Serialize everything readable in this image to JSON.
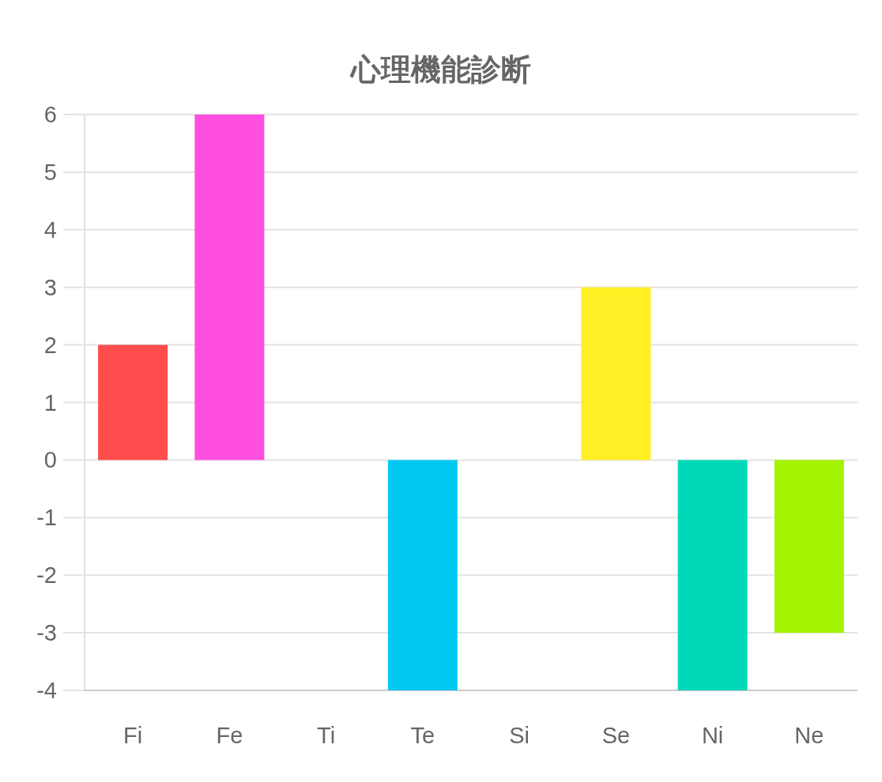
{
  "chart_data": {
    "type": "bar",
    "title": "心理機能診断",
    "categories": [
      "Fi",
      "Fe",
      "Ti",
      "Te",
      "Si",
      "Se",
      "Ni",
      "Ne"
    ],
    "values": [
      2,
      6,
      0,
      -4,
      0,
      3,
      -4,
      -3
    ],
    "colors": [
      "#ff4d4d",
      "#ff4fe1",
      null,
      "#02c9f2",
      null,
      "#ffef24",
      "#00d9b8",
      "#a3f200"
    ],
    "ylim": [
      -4,
      6
    ],
    "yticks": [
      -4,
      -3,
      -2,
      -1,
      0,
      1,
      2,
      3,
      4,
      5,
      6
    ],
    "grid": "y"
  }
}
